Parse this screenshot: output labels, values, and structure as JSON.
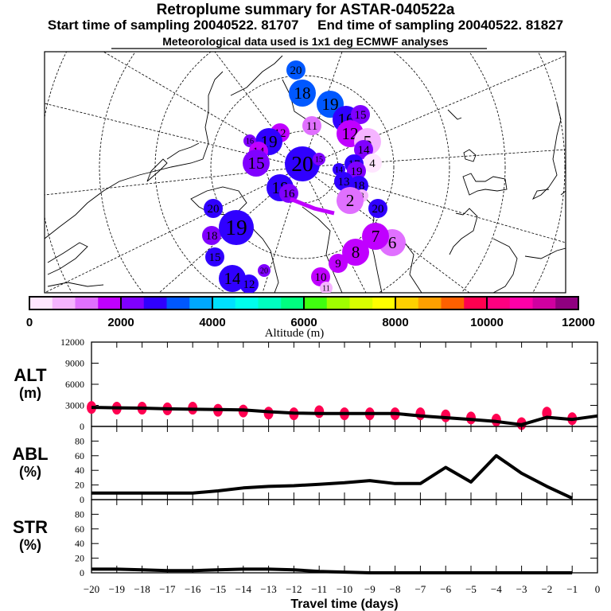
{
  "titles": {
    "main": "Retroplume summary for ASTAR-040522a",
    "sampling": "Start time of sampling 20040522. 81707     End time of sampling 20040522. 81827",
    "meteo": "Meteorological data used is 1x1 deg ECMWF analyses"
  },
  "colorbar": {
    "label": "Altitude (m)",
    "ticks": [
      "0",
      "2000",
      "4000",
      "6000",
      "8000",
      "10000",
      "12000"
    ],
    "colors": [
      "#ffe6ff",
      "#f5b4ff",
      "#e070ff",
      "#c000ff",
      "#8000ff",
      "#3000ff",
      "#0058ff",
      "#00a8ff",
      "#00e0ff",
      "#00ffec",
      "#00ffc0",
      "#00ff80",
      "#40ff10",
      "#a0ff00",
      "#d8ff00",
      "#ffff00",
      "#ffd000",
      "#ffa000",
      "#ff6000",
      "#ff0050",
      "#ff0080",
      "#ff00a8",
      "#d000a0",
      "#900080"
    ],
    "range": [
      0,
      12000
    ]
  },
  "map": {
    "clusters": [
      {
        "label": "20",
        "color": "#0058ff",
        "size": "m"
      },
      {
        "label": "18",
        "color": "#0058ff",
        "size": "l"
      },
      {
        "label": "19",
        "color": "#0058ff",
        "size": "l"
      },
      {
        "label": "16",
        "color": "#3000ff",
        "size": "l"
      },
      {
        "label": "15",
        "color": "#8000ff",
        "size": "m"
      },
      {
        "label": "11",
        "color": "#e070ff",
        "size": "m"
      },
      {
        "label": "12",
        "color": "#c000ff",
        "size": "l"
      },
      {
        "label": "5",
        "color": "#f5b4ff",
        "size": "l"
      },
      {
        "label": "14",
        "color": "#8000ff",
        "size": "m"
      },
      {
        "label": "4",
        "color": "#ffe6ff",
        "size": "m"
      },
      {
        "label": "17",
        "color": "#3000ff",
        "size": "m"
      },
      {
        "label": "19",
        "color": "#8000ff",
        "size": "m"
      },
      {
        "label": "13",
        "color": "#3000ff",
        "size": "m"
      },
      {
        "label": "18",
        "color": "#3000ff",
        "size": "m"
      },
      {
        "label": "3",
        "color": "#f5b4ff",
        "size": "s"
      },
      {
        "label": "2",
        "color": "#e070ff",
        "size": "l"
      },
      {
        "label": "20",
        "color": "#3000ff",
        "size": "m"
      },
      {
        "label": "6",
        "color": "#e070ff",
        "size": "l"
      },
      {
        "label": "7",
        "color": "#c000ff",
        "size": "l"
      },
      {
        "label": "8",
        "color": "#c000ff",
        "size": "l"
      },
      {
        "label": "9",
        "color": "#c000ff",
        "size": "m"
      },
      {
        "label": "10",
        "color": "#c000ff",
        "size": "m"
      },
      {
        "label": "11",
        "color": "#f5b4ff",
        "size": "s"
      },
      {
        "label": "12",
        "color": "#c000ff",
        "size": "m"
      },
      {
        "label": "19",
        "color": "#3000ff",
        "size": "l"
      },
      {
        "label": "16",
        "color": "#8000ff",
        "size": "s"
      },
      {
        "label": "14",
        "color": "#c000ff",
        "size": "m"
      },
      {
        "label": "15",
        "color": "#8000ff",
        "size": "l"
      },
      {
        "label": "20",
        "color": "#3000ff",
        "size": "xl"
      },
      {
        "label": "15",
        "color": "#8000ff",
        "size": "s"
      },
      {
        "label": "14",
        "color": "#3000ff",
        "size": "s"
      },
      {
        "label": "18",
        "color": "#3000ff",
        "size": "l"
      },
      {
        "label": "16",
        "color": "#8000ff",
        "size": "m"
      },
      {
        "label": "20",
        "color": "#3000ff",
        "size": "m"
      },
      {
        "label": "18",
        "color": "#8000ff",
        "size": "m"
      },
      {
        "label": "19",
        "color": "#3000ff",
        "size": "xl"
      },
      {
        "label": "15",
        "color": "#3000ff",
        "size": "m"
      },
      {
        "label": "20",
        "color": "#8000ff",
        "size": "s"
      },
      {
        "label": "14",
        "color": "#3000ff",
        "size": "l"
      },
      {
        "label": "12",
        "color": "#3000ff",
        "size": "m"
      }
    ]
  },
  "chart_data": [
    {
      "type": "scatter+line",
      "panel": "ALT",
      "ylabel": "ALT\n(m)",
      "yticks": [
        "0",
        "3000",
        "6000",
        "9000",
        "12000"
      ],
      "ylim": [
        0,
        12000
      ],
      "xlim": [
        -20,
        0
      ],
      "line": {
        "x": [
          -20,
          -19,
          -18,
          -17,
          -16,
          -15,
          -14,
          -13,
          -12,
          -11,
          -10,
          -9,
          -8,
          -7,
          -6,
          -5,
          -4,
          -3,
          -2,
          -1,
          0
        ],
        "y": [
          2700,
          2650,
          2600,
          2500,
          2450,
          2400,
          2350,
          2100,
          1900,
          1850,
          1850,
          1850,
          1850,
          1500,
          1250,
          1000,
          700,
          250,
          1300,
          1000,
          1500
        ]
      },
      "clusters": {
        "x": [
          -20,
          -19,
          -18,
          -17,
          -16,
          -15,
          -14,
          -13,
          -12,
          -11,
          -10,
          -9,
          -8,
          -7,
          -6,
          -5,
          -4,
          -3,
          -2,
          -1
        ],
        "y": [
          2700,
          2600,
          2600,
          2500,
          2600,
          2300,
          2200,
          1900,
          1800,
          2100,
          1800,
          1800,
          1800,
          1800,
          1500,
          1200,
          900,
          400,
          1900,
          1100
        ],
        "color": "#ff0050"
      }
    },
    {
      "type": "line",
      "panel": "ABL",
      "ylabel": "ABL\n(%)",
      "yticks": [
        "0",
        "20",
        "40",
        "60",
        "80"
      ],
      "ylim": [
        0,
        100
      ],
      "xlim": [
        -20,
        0
      ],
      "x": [
        -20,
        -19,
        -18,
        -17,
        -16,
        -15,
        -14,
        -13,
        -12,
        -11,
        -10,
        -9,
        -8,
        -7,
        -6,
        -5,
        -4,
        -3,
        -2,
        -1
      ],
      "y": [
        9,
        9,
        9,
        9,
        9,
        12,
        16,
        18,
        19,
        21,
        23,
        26,
        22,
        22,
        44,
        24,
        60,
        36,
        18,
        2
      ]
    },
    {
      "type": "line",
      "panel": "STR",
      "ylabel": "STR\n(%)",
      "yticks": [
        "0",
        "20",
        "40",
        "60",
        "80"
      ],
      "ylim": [
        0,
        100
      ],
      "xlim": [
        -20,
        0
      ],
      "x": [
        -20,
        -19,
        -18,
        -17,
        -16,
        -15,
        -14,
        -13,
        -12,
        -11,
        -10,
        -9,
        -8,
        -7,
        -6,
        -5,
        -4,
        -3,
        -2,
        -1
      ],
      "y": [
        5,
        5,
        4,
        3,
        3,
        4,
        5,
        5,
        4,
        2,
        1,
        0,
        0,
        0,
        0,
        0,
        0,
        0,
        0,
        0
      ],
      "xticks": [
        "-20",
        "-19",
        "-18",
        "-17",
        "-16",
        "-15",
        "-14",
        "-13",
        "-12",
        "-11",
        "-10",
        "-9",
        "-8",
        "-7",
        "-6",
        "-5",
        "-4",
        "-3",
        "-2",
        "-1",
        "0"
      ],
      "xlabel": "Travel time (days)"
    }
  ]
}
